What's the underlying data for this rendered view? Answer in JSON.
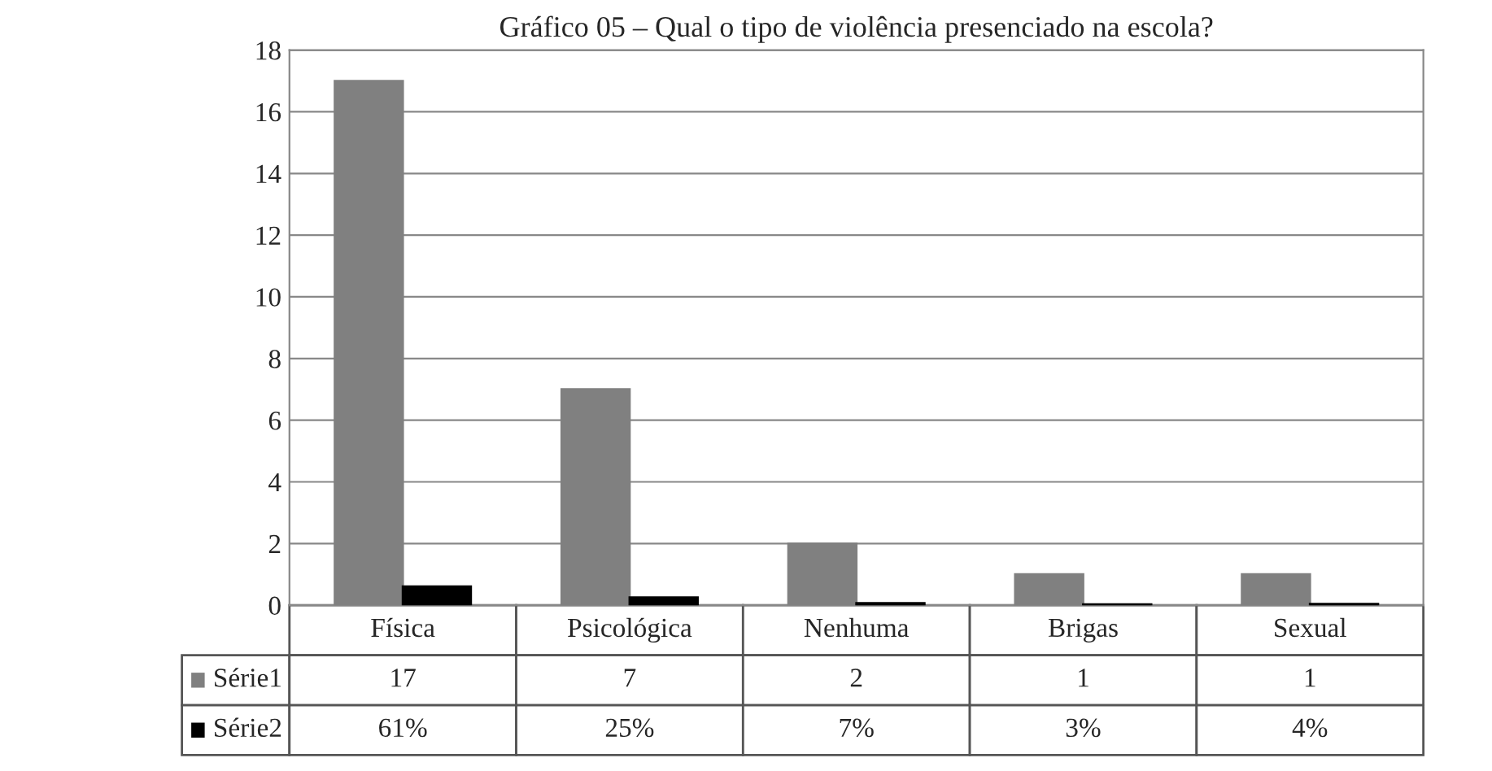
{
  "chart_data": {
    "type": "bar",
    "title": "Gráfico 05 – Qual o tipo de violência presenciado na escola?",
    "categories": [
      "Física",
      "Psicológica",
      "Nenhuma",
      "Brigas",
      "Sexual"
    ],
    "series": [
      {
        "name": "Série1",
        "color": "#808080",
        "values": [
          17,
          7,
          2,
          1,
          1
        ],
        "value_labels": [
          "17",
          "7",
          "2",
          "1",
          "1"
        ]
      },
      {
        "name": "Série2",
        "color": "#000000",
        "values": [
          0.61,
          0.25,
          0.07,
          0.03,
          0.04
        ],
        "value_labels": [
          "61%",
          "25%",
          "7%",
          "3%",
          "4%"
        ]
      }
    ],
    "ylim": [
      0,
      18
    ],
    "yticks": [
      0,
      2,
      4,
      6,
      8,
      10,
      12,
      14,
      16,
      18
    ],
    "grid": "y",
    "legend": "bottom left"
  }
}
